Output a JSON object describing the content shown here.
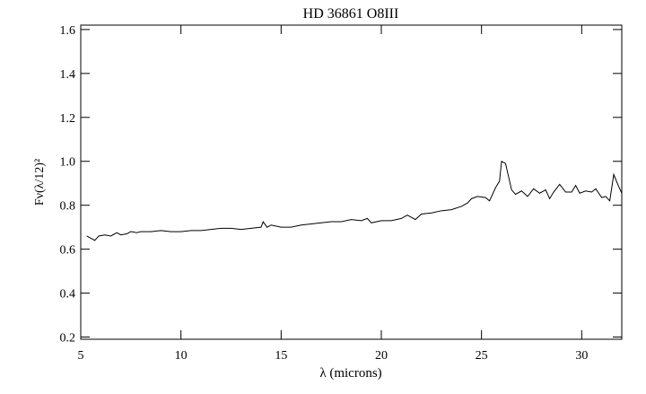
{
  "chart_data": {
    "type": "line",
    "title": "HD 36861 O8III",
    "xlabel": "λ (microns)",
    "ylabel": "Fν(λ/12)²",
    "color": "#000000",
    "x": [
      5.3,
      5.5,
      5.7,
      5.9,
      6.2,
      6.5,
      6.8,
      7.0,
      7.3,
      7.5,
      7.8,
      8.0,
      8.5,
      9.0,
      9.5,
      10.0,
      10.5,
      11.0,
      11.5,
      12.0,
      12.5,
      13.0,
      13.5,
      14.0,
      14.1,
      14.3,
      14.5,
      15.0,
      15.5,
      16.0,
      16.5,
      17.0,
      17.5,
      18.0,
      18.5,
      19.0,
      19.3,
      19.5,
      20.0,
      20.5,
      21.0,
      21.3,
      21.7,
      22.0,
      22.5,
      23.0,
      23.5,
      24.0,
      24.3,
      24.5,
      24.8,
      25.2,
      25.4,
      25.7,
      25.9,
      26.0,
      26.2,
      26.5,
      26.7,
      27.0,
      27.3,
      27.6,
      27.9,
      28.2,
      28.4,
      28.6,
      28.9,
      29.2,
      29.5,
      29.7,
      29.9,
      30.2,
      30.5,
      30.7,
      31.0,
      31.2,
      31.4,
      31.6,
      31.8,
      32.0
    ],
    "values": [
      0.66,
      0.65,
      0.64,
      0.66,
      0.665,
      0.66,
      0.675,
      0.665,
      0.67,
      0.68,
      0.675,
      0.68,
      0.68,
      0.685,
      0.68,
      0.68,
      0.685,
      0.685,
      0.69,
      0.695,
      0.695,
      0.69,
      0.695,
      0.7,
      0.725,
      0.7,
      0.71,
      0.7,
      0.7,
      0.71,
      0.715,
      0.72,
      0.725,
      0.725,
      0.735,
      0.73,
      0.74,
      0.72,
      0.73,
      0.73,
      0.74,
      0.755,
      0.735,
      0.76,
      0.765,
      0.775,
      0.78,
      0.795,
      0.81,
      0.83,
      0.84,
      0.835,
      0.82,
      0.88,
      0.91,
      1.0,
      0.99,
      0.87,
      0.85,
      0.865,
      0.84,
      0.875,
      0.855,
      0.87,
      0.83,
      0.86,
      0.895,
      0.86,
      0.86,
      0.89,
      0.855,
      0.865,
      0.86,
      0.875,
      0.835,
      0.84,
      0.82,
      0.94,
      0.895,
      0.855
    ],
    "xlim": [
      5,
      32
    ],
    "ylim": [
      0.19,
      1.62
    ],
    "xticks": [
      5,
      10,
      15,
      20,
      25,
      30
    ],
    "yticks": [
      0.2,
      0.4,
      0.6,
      0.8,
      {
        "value": 1,
        "label": "1.0"
      },
      1.2,
      1.4,
      1.6
    ],
    "grid": false
  }
}
